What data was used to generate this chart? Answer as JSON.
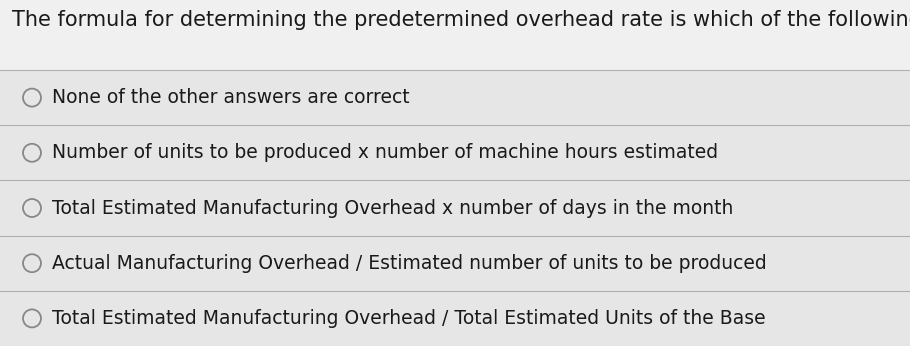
{
  "background_color": "#d8d8d8",
  "content_bg": "#e8e8e8",
  "title": "The formula for determining the predetermined overhead rate is which of the following:",
  "title_fontsize": 15,
  "title_color": "#1a1a1a",
  "options": [
    "None of the other answers are correct",
    "Number of units to be produced x number of machine hours estimated",
    "Total Estimated Manufacturing Overhead x number of days in the month",
    "Actual Manufacturing Overhead / Estimated number of units to be produced",
    "Total Estimated Manufacturing Overhead / Total Estimated Units of the Base"
  ],
  "option_fontsize": 13.5,
  "option_color": "#1a1a1a",
  "circle_color": "#888888",
  "line_color": "#b0b0b0",
  "line_width": 0.8
}
